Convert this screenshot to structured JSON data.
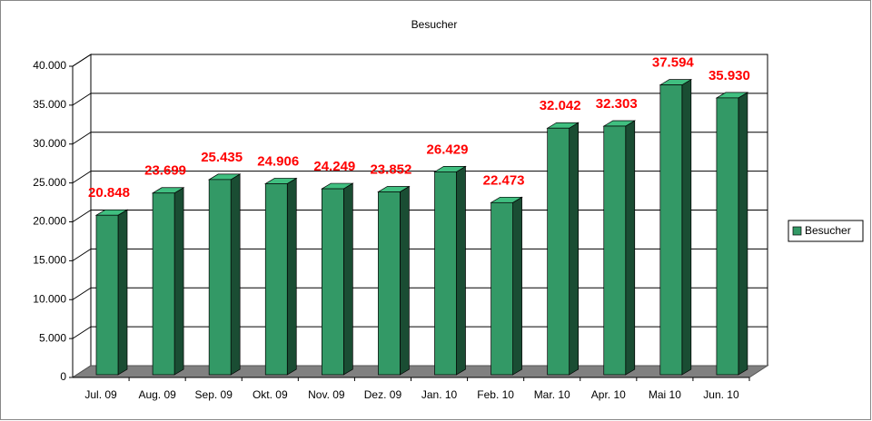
{
  "chart_data": {
    "type": "bar",
    "title": "Besucher",
    "categories": [
      "Jul. 09",
      "Aug. 09",
      "Sep. 09",
      "Okt. 09",
      "Nov. 09",
      "Dez. 09",
      "Jan. 10",
      "Feb. 10",
      "Mar. 10",
      "Apr. 10",
      "Mai 10",
      "Jun. 10"
    ],
    "series": [
      {
        "name": "Besucher",
        "color": "#339966",
        "values": [
          20848,
          23699,
          25435,
          24906,
          24249,
          23852,
          26429,
          22473,
          32042,
          32303,
          37594,
          35930
        ],
        "value_labels": [
          "20.848",
          "23.699",
          "25.435",
          "24.906",
          "24.249",
          "23.852",
          "26.429",
          "22.473",
          "32.042",
          "32.303",
          "37.594",
          "35.930"
        ]
      }
    ],
    "ylim": [
      0,
      40000
    ],
    "yticks": [
      0,
      {
        "value": 5000,
        "label": "5.000"
      },
      {
        "value": 10000,
        "label": "10.000"
      },
      {
        "value": 15000,
        "label": "15.000"
      },
      {
        "value": 20000,
        "label": "20.000"
      },
      {
        "value": 25000,
        "label": "25.000"
      },
      {
        "value": 30000,
        "label": "30.000"
      },
      {
        "value": 35000,
        "label": "35.000"
      },
      {
        "value": 40000,
        "label": "40.000"
      }
    ],
    "grid": true,
    "legend": "right",
    "value_label_color": "#ff0000"
  }
}
